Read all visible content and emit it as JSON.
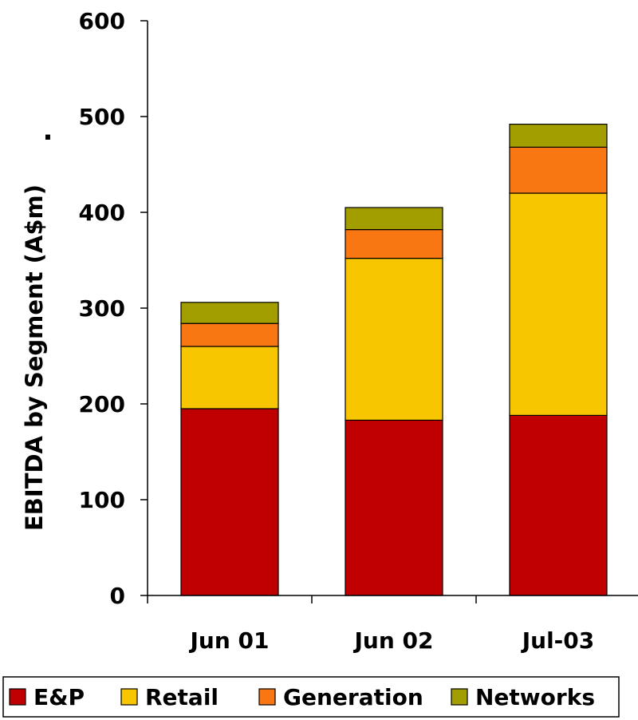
{
  "chart_data": {
    "type": "bar",
    "stacked": true,
    "title": "",
    "xlabel": "",
    "ylabel": "EBITDA by Segment (A$m)",
    "ylabel_marker": ".",
    "ylim": [
      0,
      600
    ],
    "yticks": [
      0,
      100,
      200,
      300,
      400,
      500,
      600
    ],
    "grid": false,
    "legend_position": "bottom",
    "categories": [
      "Jun 01",
      "Jun 02",
      "Jul-03"
    ],
    "series": [
      {
        "name": "E&P",
        "color": "#c00000",
        "values": [
          195,
          183,
          188
        ]
      },
      {
        "name": "Retail",
        "color": "#f7c600",
        "values": [
          65,
          169,
          232
        ]
      },
      {
        "name": "Generation",
        "color": "#f97712",
        "values": [
          24,
          30,
          48
        ]
      },
      {
        "name": "Networks",
        "color": "#a39e00",
        "values": [
          22,
          23,
          24
        ]
      }
    ]
  }
}
